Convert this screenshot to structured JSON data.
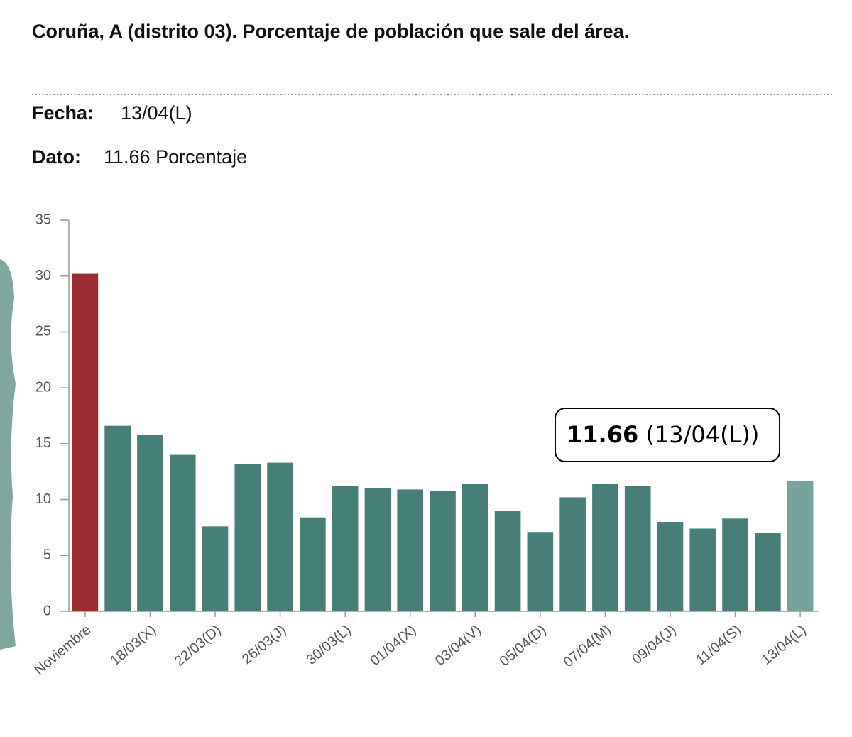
{
  "header": {
    "title": "Coruña, A (distrito 03). Porcentaje de población que sale del área.",
    "fecha_label": "Fecha:",
    "fecha_value": "13/04(L)",
    "dato_label": "Dato:",
    "dato_value": "11.66 Porcentaje"
  },
  "tooltip": {
    "value": "11.66",
    "label": "(13/04(L))"
  },
  "chart_data": {
    "type": "bar",
    "categories": [
      "Noviembre",
      null,
      "18/03(X)",
      null,
      "22/03(D)",
      null,
      "26/03(J)",
      null,
      "30/03(L)",
      null,
      "01/04(X)",
      null,
      "03/04(V)",
      null,
      "05/04(D)",
      null,
      "07/04(M)",
      null,
      "09/04(J)",
      null,
      "11/04(S)",
      null,
      "13/04(L)"
    ],
    "values": [
      30.2,
      16.6,
      15.8,
      14.0,
      7.6,
      13.2,
      13.3,
      8.4,
      11.2,
      11.05,
      10.9,
      10.8,
      11.4,
      9.0,
      7.1,
      10.2,
      11.4,
      11.2,
      8.0,
      7.4,
      8.3,
      7.0,
      11.66
    ],
    "colors": [
      "#9b2d30",
      "#467f77",
      "#467f77",
      "#467f77",
      "#467f77",
      "#467f77",
      "#467f77",
      "#467f77",
      "#467f77",
      "#467f77",
      "#467f77",
      "#467f77",
      "#467f77",
      "#467f77",
      "#467f77",
      "#467f77",
      "#467f77",
      "#467f77",
      "#467f77",
      "#467f77",
      "#467f77",
      "#467f77",
      "#76a39d"
    ],
    "ylim": [
      0,
      35
    ],
    "yticks": [
      0,
      5,
      10,
      15,
      20,
      25,
      30,
      35
    ]
  }
}
